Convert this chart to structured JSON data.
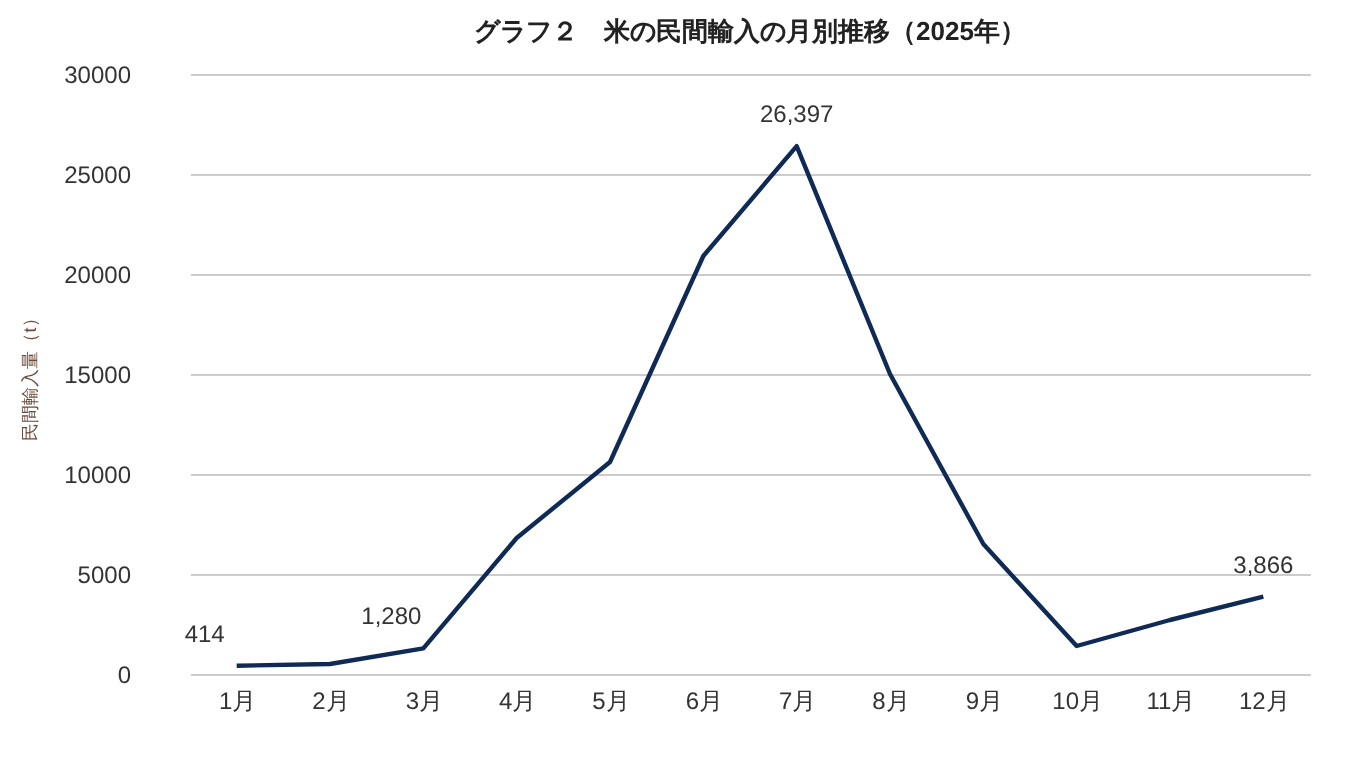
{
  "chart_data": {
    "type": "line",
    "title": "グラフ２　米の民間輸入の月別推移（2025年）",
    "ylabel": "民間輸入量（t）",
    "categories": [
      "1月",
      "2月",
      "3月",
      "4月",
      "5月",
      "6月",
      "7月",
      "8月",
      "9月",
      "10月",
      "11月",
      "12月"
    ],
    "series": [
      {
        "color": "#0f2a55",
        "values": [
          414,
          500,
          1280,
          6800,
          10600,
          20900,
          26397,
          15000,
          6500,
          1400,
          2700,
          3866
        ],
        "value_labels": [
          "414",
          null,
          "1,280",
          null,
          null,
          null,
          "26,397",
          null,
          null,
          null,
          null,
          "3,866"
        ]
      }
    ],
    "ylim": [
      0,
      30000
    ],
    "yticks": [
      0,
      5000,
      10000,
      15000,
      20000,
      25000,
      30000
    ],
    "grid": "y",
    "legend": false,
    "marker": "none",
    "line_style": "solid"
  }
}
